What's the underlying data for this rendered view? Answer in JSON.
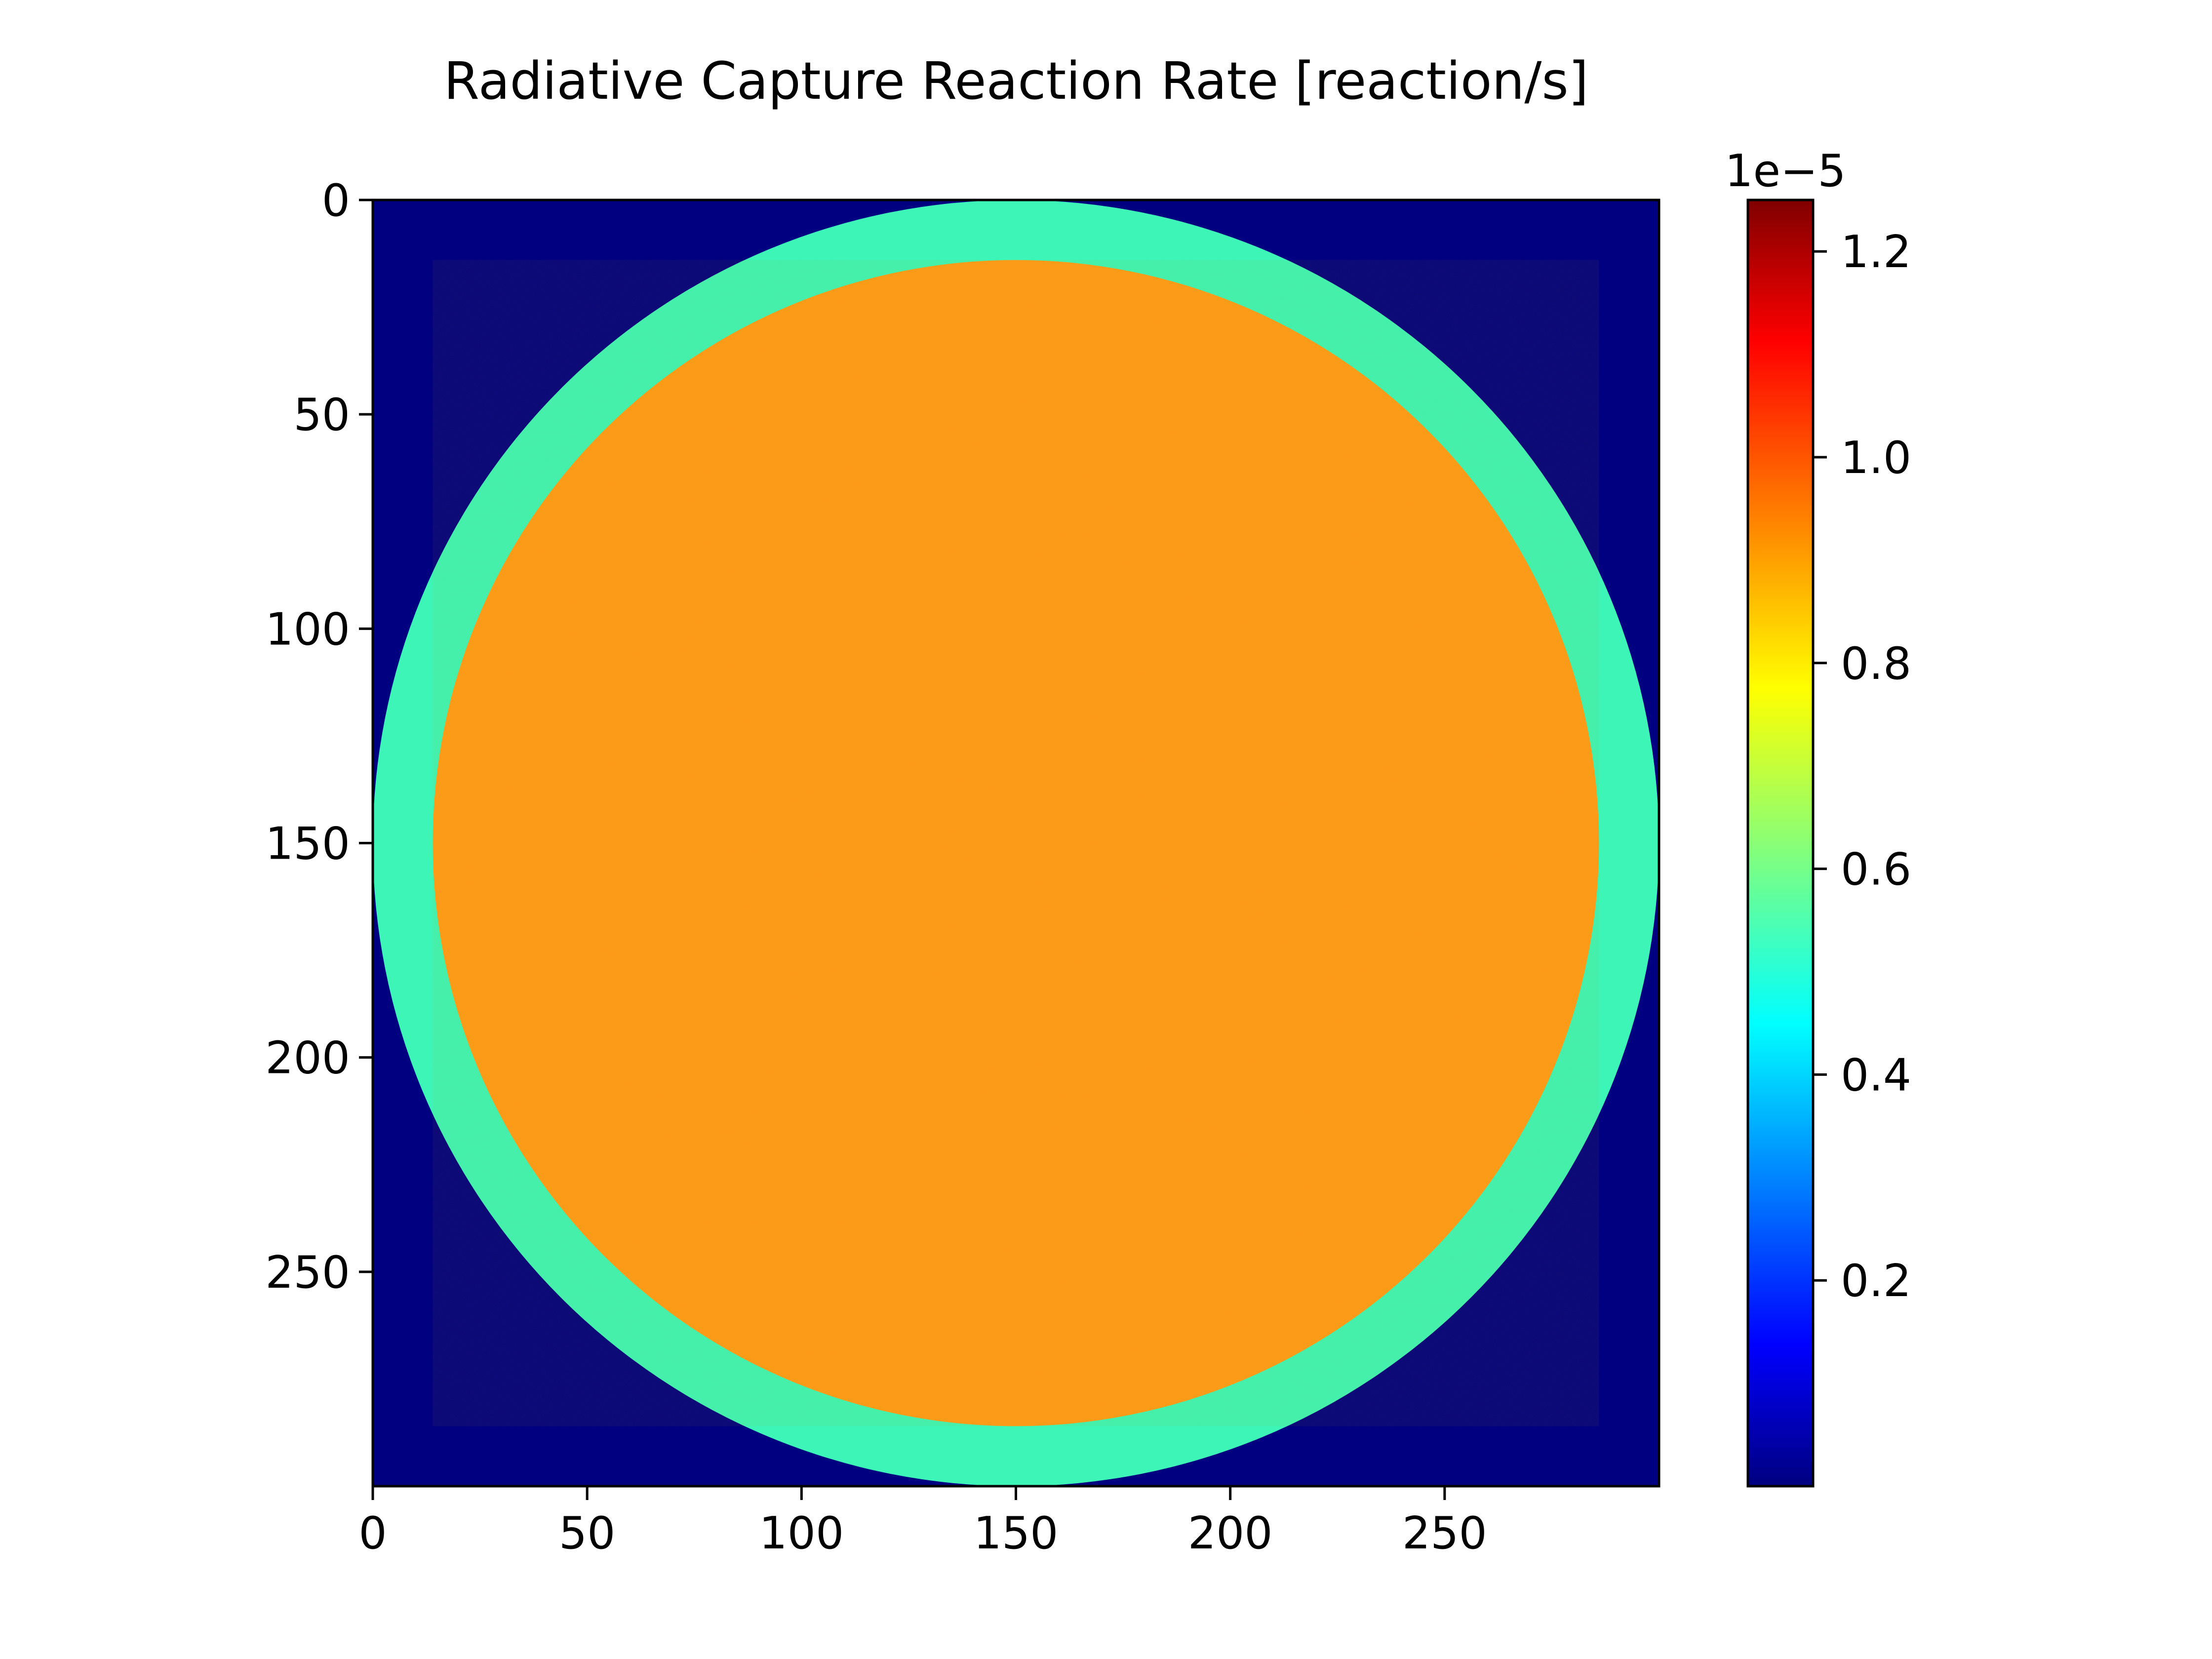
{
  "chart_data": {
    "type": "heatmap",
    "title": "Radiative Capture Reaction Rate [reaction/s]",
    "xlabel": "",
    "ylabel": "",
    "x_range": [
      0,
      300
    ],
    "y_range": [
      0,
      300
    ],
    "y_inverted": true,
    "x_ticks": [
      "0",
      "50",
      "100",
      "150",
      "200",
      "250"
    ],
    "x_tick_values": [
      0,
      50,
      100,
      150,
      200,
      250
    ],
    "y_ticks": [
      "0",
      "50",
      "100",
      "150",
      "200",
      "250"
    ],
    "y_tick_values": [
      0,
      50,
      100,
      150,
      200,
      250
    ],
    "grid": false,
    "colormap": "jet",
    "colormap_stops": [
      "#000080",
      "#0000ff",
      "#00ffff",
      "#ffff00",
      "#ff0000",
      "#800000"
    ],
    "colorbar": {
      "range": [
        0.0,
        1.25
      ],
      "exponent_label": "1e−5",
      "ticks": [
        "0.2",
        "0.4",
        "0.6",
        "0.8",
        "1.0",
        "1.2"
      ],
      "tick_values": [
        0.2,
        0.4,
        0.6,
        0.8,
        1.0,
        1.2
      ]
    },
    "regions": [
      {
        "name": "outer",
        "value": 0.0,
        "color": "#000080"
      },
      {
        "name": "annulus",
        "value": 0.53,
        "outer_radius": 150,
        "color": "#3cf5b7"
      },
      {
        "name": "core",
        "value": 0.94,
        "outer_radius": 136,
        "color": "#ff9b1a"
      }
    ],
    "center": [
      150,
      150
    ]
  }
}
